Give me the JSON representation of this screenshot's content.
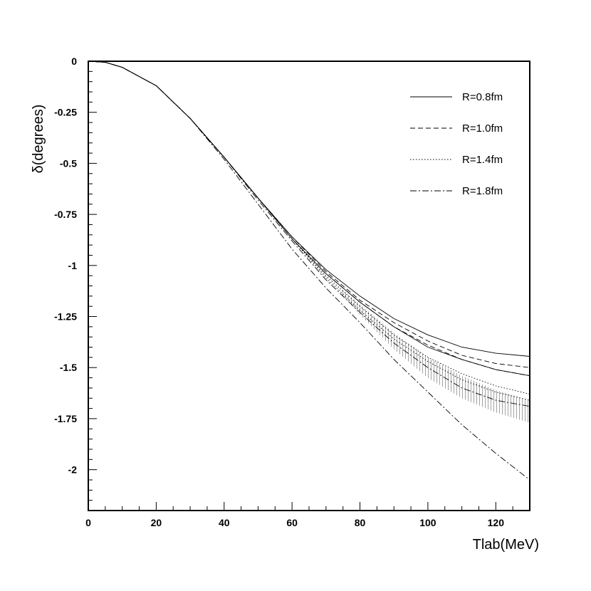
{
  "chart_data": {
    "type": "line",
    "xlabel": "Tlab(MeV)",
    "ylabel": "δ(degrees)",
    "xlim": [
      0,
      130
    ],
    "ylim": [
      -2.2,
      0
    ],
    "x_ticks": [
      0,
      20,
      40,
      60,
      80,
      100,
      120
    ],
    "x_tick_labels": [
      "0",
      "20",
      "40",
      "60",
      "80",
      "100",
      "120"
    ],
    "y_ticks": [
      0,
      -0.25,
      -0.5,
      -0.75,
      -1,
      -1.25,
      -1.5,
      -1.75,
      -2
    ],
    "y_tick_labels": [
      "0",
      "-0.25",
      "-0.5",
      "-0.75",
      "-1",
      "-1.25",
      "-1.5",
      "-1.75",
      "-2"
    ],
    "grid": false,
    "legend_position": "top-right",
    "series": [
      {
        "name": "R=0.8fm",
        "style": "solid",
        "band": [
          {
            "x": [
              0,
              5,
              10,
              20,
              30,
              40,
              50,
              60,
              70,
              80,
              90,
              100,
              110,
              120,
              130
            ],
            "y": [
              0,
              -0.005,
              -0.03,
              -0.12,
              -0.28,
              -0.47,
              -0.67,
              -0.86,
              -1.02,
              -1.15,
              -1.26,
              -1.34,
              -1.4,
              -1.43,
              -1.445
            ]
          },
          {
            "x": [
              0,
              5,
              10,
              20,
              30,
              40,
              50,
              60,
              70,
              80,
              90,
              100,
              110,
              120,
              130
            ],
            "y": [
              0,
              -0.005,
              -0.03,
              -0.12,
              -0.28,
              -0.47,
              -0.67,
              -0.87,
              -1.04,
              -1.18,
              -1.3,
              -1.4,
              -1.46,
              -1.51,
              -1.54
            ]
          }
        ]
      },
      {
        "name": "R=1.0fm",
        "style": "dashed",
        "band": [
          {
            "x": [
              0,
              5,
              10,
              20,
              30,
              40,
              50,
              60,
              70,
              80,
              90,
              100,
              110,
              120,
              130
            ],
            "y": [
              0,
              -0.005,
              -0.03,
              -0.12,
              -0.28,
              -0.47,
              -0.67,
              -0.86,
              -1.03,
              -1.17,
              -1.28,
              -1.37,
              -1.44,
              -1.48,
              -1.5
            ]
          },
          {
            "x": [
              0,
              5,
              10,
              20,
              30,
              40,
              50,
              60,
              70,
              80,
              90,
              100,
              110,
              120,
              130
            ],
            "y": [
              0,
              -0.005,
              -0.03,
              -0.12,
              -0.28,
              -0.47,
              -0.67,
              -0.87,
              -1.04,
              -1.18,
              -1.3,
              -1.39,
              -1.46,
              -1.51,
              -1.54
            ]
          }
        ]
      },
      {
        "name": "R=1.4fm",
        "style": "dotted",
        "band": [
          {
            "x": [
              0,
              5,
              10,
              20,
              30,
              40,
              50,
              60,
              70,
              80,
              90,
              100,
              110,
              120,
              130
            ],
            "y": [
              0,
              -0.005,
              -0.03,
              -0.12,
              -0.28,
              -0.47,
              -0.67,
              -0.87,
              -1.05,
              -1.2,
              -1.34,
              -1.45,
              -1.53,
              -1.59,
              -1.63
            ]
          },
          {
            "x": [
              0,
              5,
              10,
              20,
              30,
              40,
              50,
              60,
              70,
              80,
              90,
              100,
              110,
              120,
              130
            ],
            "y": [
              0,
              -0.005,
              -0.03,
              -0.12,
              -0.28,
              -0.47,
              -0.67,
              -0.87,
              -1.06,
              -1.22,
              -1.36,
              -1.47,
              -1.56,
              -1.62,
              -1.66
            ]
          }
        ]
      },
      {
        "name": "R=1.8fm",
        "style": "dashdot",
        "band": [
          {
            "x": [
              0,
              5,
              10,
              20,
              30,
              40,
              50,
              60,
              70,
              80,
              90,
              100,
              110,
              120,
              130
            ],
            "y": [
              0,
              -0.005,
              -0.03,
              -0.12,
              -0.28,
              -0.47,
              -0.68,
              -0.88,
              -1.07,
              -1.23,
              -1.38,
              -1.5,
              -1.6,
              -1.66,
              -1.69
            ]
          },
          {
            "x": [
              0,
              5,
              10,
              20,
              30,
              40,
              50,
              60,
              70,
              80,
              90,
              100,
              110,
              120,
              130
            ],
            "y": [
              0,
              -0.005,
              -0.03,
              -0.12,
              -0.28,
              -0.48,
              -0.7,
              -0.92,
              -1.11,
              -1.28,
              -1.46,
              -1.62,
              -1.78,
              -1.92,
              -2.05
            ]
          }
        ]
      }
    ],
    "shaded_band": {
      "x": [
        75,
        80,
        90,
        100,
        110,
        120,
        130
      ],
      "upper": [
        -1.12,
        -1.19,
        -1.33,
        -1.45,
        -1.54,
        -1.61,
        -1.66
      ],
      "lower": [
        -1.15,
        -1.24,
        -1.41,
        -1.55,
        -1.65,
        -1.72,
        -1.77
      ]
    }
  }
}
